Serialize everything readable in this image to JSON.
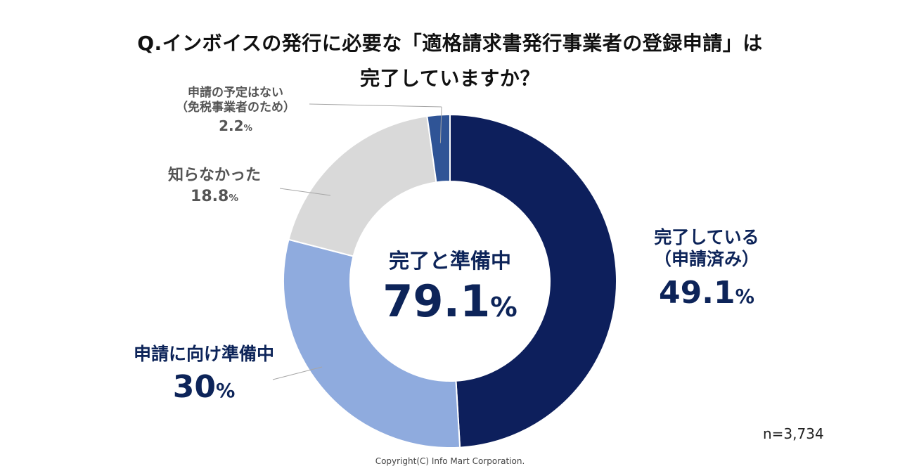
{
  "title_line1": "Q.インボイスの発行に必要な「適格請求書発行事業者の登録申請」は",
  "title_line2": "完了していますか？",
  "chart_data": {
    "type": "pie",
    "subtype": "donut",
    "title": "Q.インボイスの発行に必要な「適格請求書発行事業者の登録申請」は完了していますか？",
    "start_angle_deg": 0,
    "direction": "clockwise",
    "categories": [
      "完了している（申請済み）",
      "申請に向け準備中",
      "知らなかった",
      "申請の予定はない（免税事業者のため）"
    ],
    "values": [
      49.1,
      30,
      18.8,
      2.2
    ],
    "unit": "%",
    "colors": [
      "#0d1f5c",
      "#8fabde",
      "#d9d9d9",
      "#2f5496"
    ],
    "center_label": "完了と準備中",
    "center_value": "79.1",
    "sample_size": "n=3,734"
  },
  "labels": {
    "applied": {
      "name1": "完了している",
      "name2": "（申請済み）",
      "value": "49.1",
      "unit": "%"
    },
    "preparing": {
      "name": "申請に向け準備中",
      "value": "30",
      "unit": "%"
    },
    "unaware": {
      "name": "知らなかった",
      "value": "18.8",
      "unit": "%"
    },
    "noplan": {
      "name1": "申請の予定はない",
      "name2": "（免税事業者のため）",
      "value": "2.2",
      "unit": "%"
    }
  },
  "center": {
    "label": "完了と準備中",
    "value": "79.1",
    "unit": "%"
  },
  "sample_size": "n=3,734",
  "copyright": "Copyright(C) Info Mart Corporation."
}
